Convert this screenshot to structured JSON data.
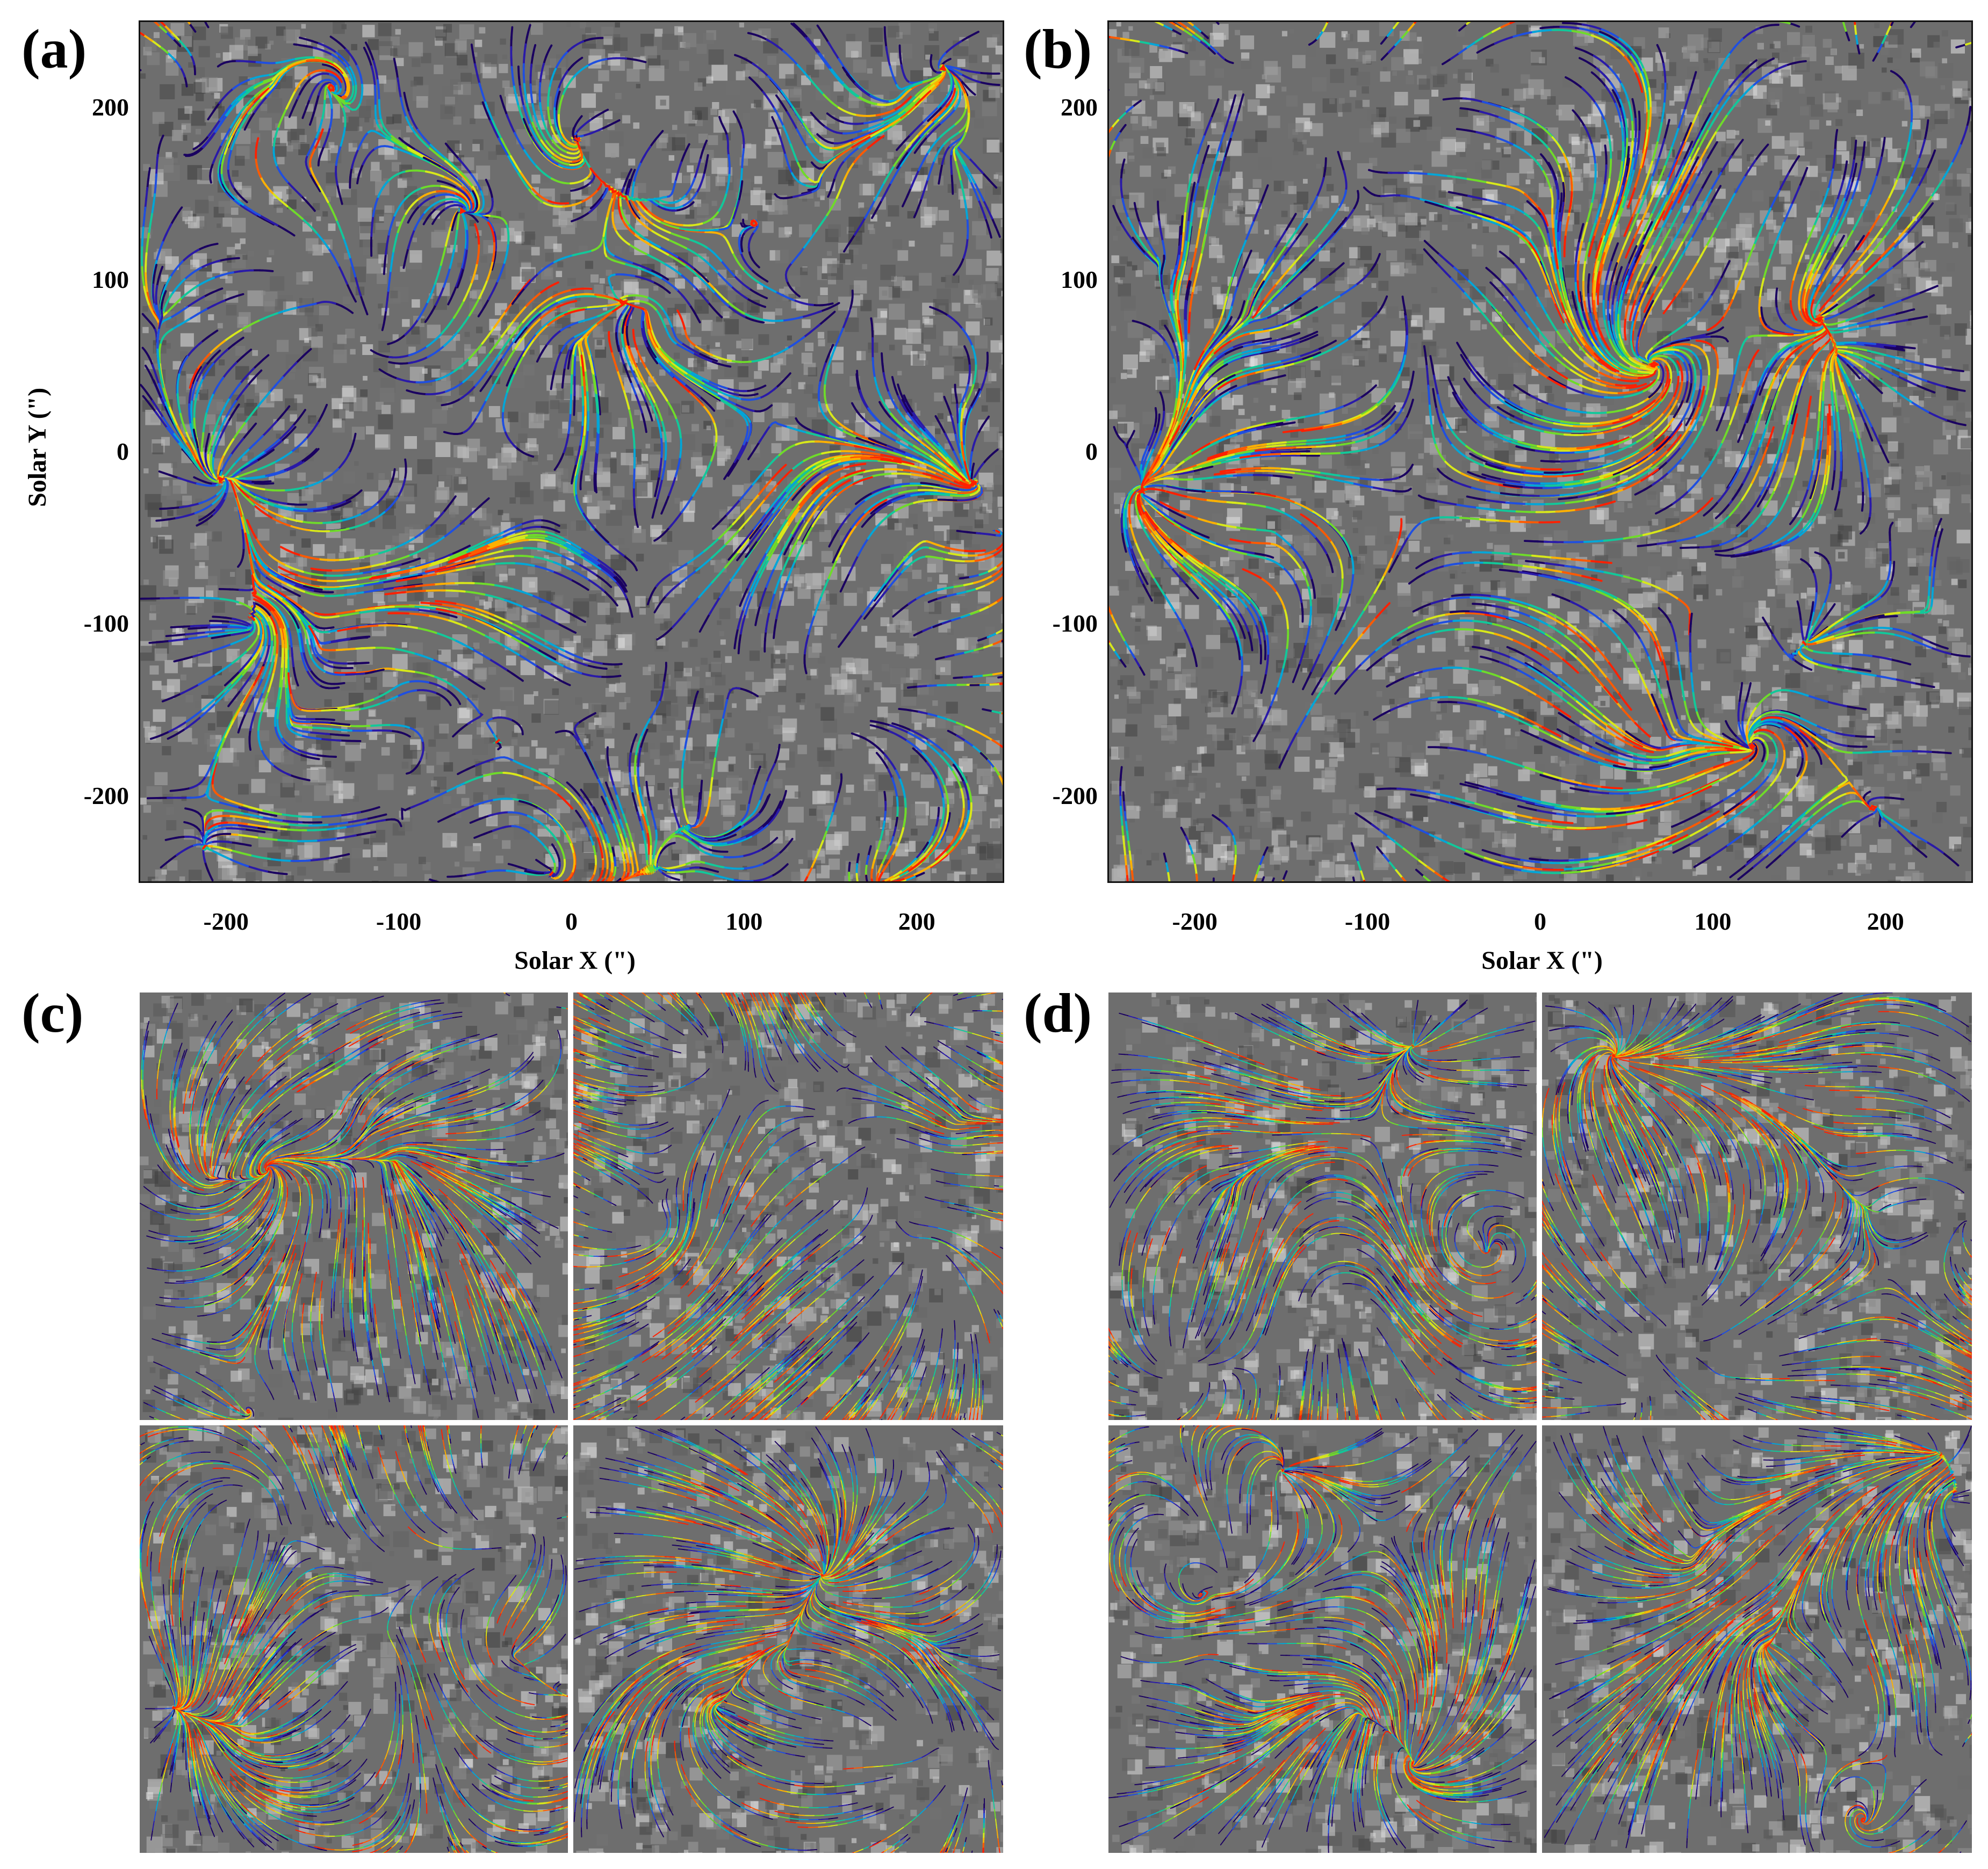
{
  "panels": {
    "a": {
      "label": "(a)"
    },
    "b": {
      "label": "(b)"
    },
    "c": {
      "label": "(c)"
    },
    "d": {
      "label": "(d)"
    }
  },
  "axes": {
    "xlabel": "Solar X (\")",
    "ylabel": "Solar Y (\")",
    "x_ticks": [
      "-200",
      "-100",
      "0",
      "100",
      "200"
    ],
    "y_ticks": [
      "200",
      "100",
      "0",
      "-100",
      "-200"
    ],
    "x_range": [
      -250,
      250
    ],
    "y_range": [
      -250,
      250
    ]
  },
  "colors": {
    "streamline_palette": [
      "#1a0060",
      "#2a1aa8",
      "#1f4fe0",
      "#00a6d8",
      "#12c89a",
      "#6fdb2a",
      "#d8e81a",
      "#ffb000",
      "#ff5a00",
      "#ff2000"
    ],
    "background_gray": "#6e6e6e"
  }
}
